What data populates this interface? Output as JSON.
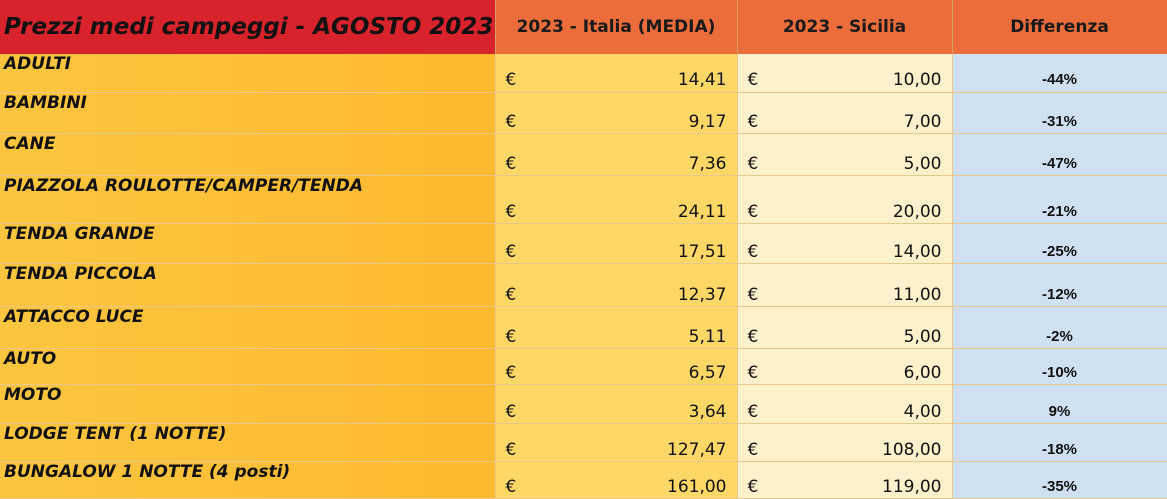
{
  "header": {
    "title": "Prezzi medi campeggi - AGOSTO 2023",
    "col_italia": "2023 - Italia (MEDIA)",
    "col_sicilia": "2023 - Sicilia",
    "col_diff": "Differenza"
  },
  "currency_symbol": "€",
  "rows": [
    {
      "label": "ADULTI",
      "italia": "14,41",
      "sicilia": "10,00",
      "diff": "-44%"
    },
    {
      "label": "BAMBINI",
      "italia": "9,17",
      "sicilia": "7,00",
      "diff": "-31%"
    },
    {
      "label": "CANE",
      "italia": "7,36",
      "sicilia": "5,00",
      "diff": "-47%"
    },
    {
      "label": "PIAZZOLA ROULOTTE/CAMPER/TENDA",
      "italia": "24,11",
      "sicilia": "20,00",
      "diff": "-21%"
    },
    {
      "label": "TENDA GRANDE",
      "italia": "17,51",
      "sicilia": "14,00",
      "diff": "-25%"
    },
    {
      "label": "TENDA PICCOLA",
      "italia": "12,37",
      "sicilia": "11,00",
      "diff": "-12%"
    },
    {
      "label": "ATTACCO LUCE",
      "italia": "5,11",
      "sicilia": "5,00",
      "diff": "-2%"
    },
    {
      "label": "AUTO",
      "italia": "6,57",
      "sicilia": "6,00",
      "diff": "-10%"
    },
    {
      "label": "MOTO",
      "italia": "3,64",
      "sicilia": "4,00",
      "diff": "9%"
    },
    {
      "label": "LODGE TENT (1 NOTTE)",
      "italia": "127,47",
      "sicilia": "108,00",
      "diff": "-18%"
    },
    {
      "label": "BUNGALOW 1 NOTTE (4 posti)",
      "italia": "161,00",
      "sicilia": "119,00",
      "diff": "-35%"
    }
  ]
}
